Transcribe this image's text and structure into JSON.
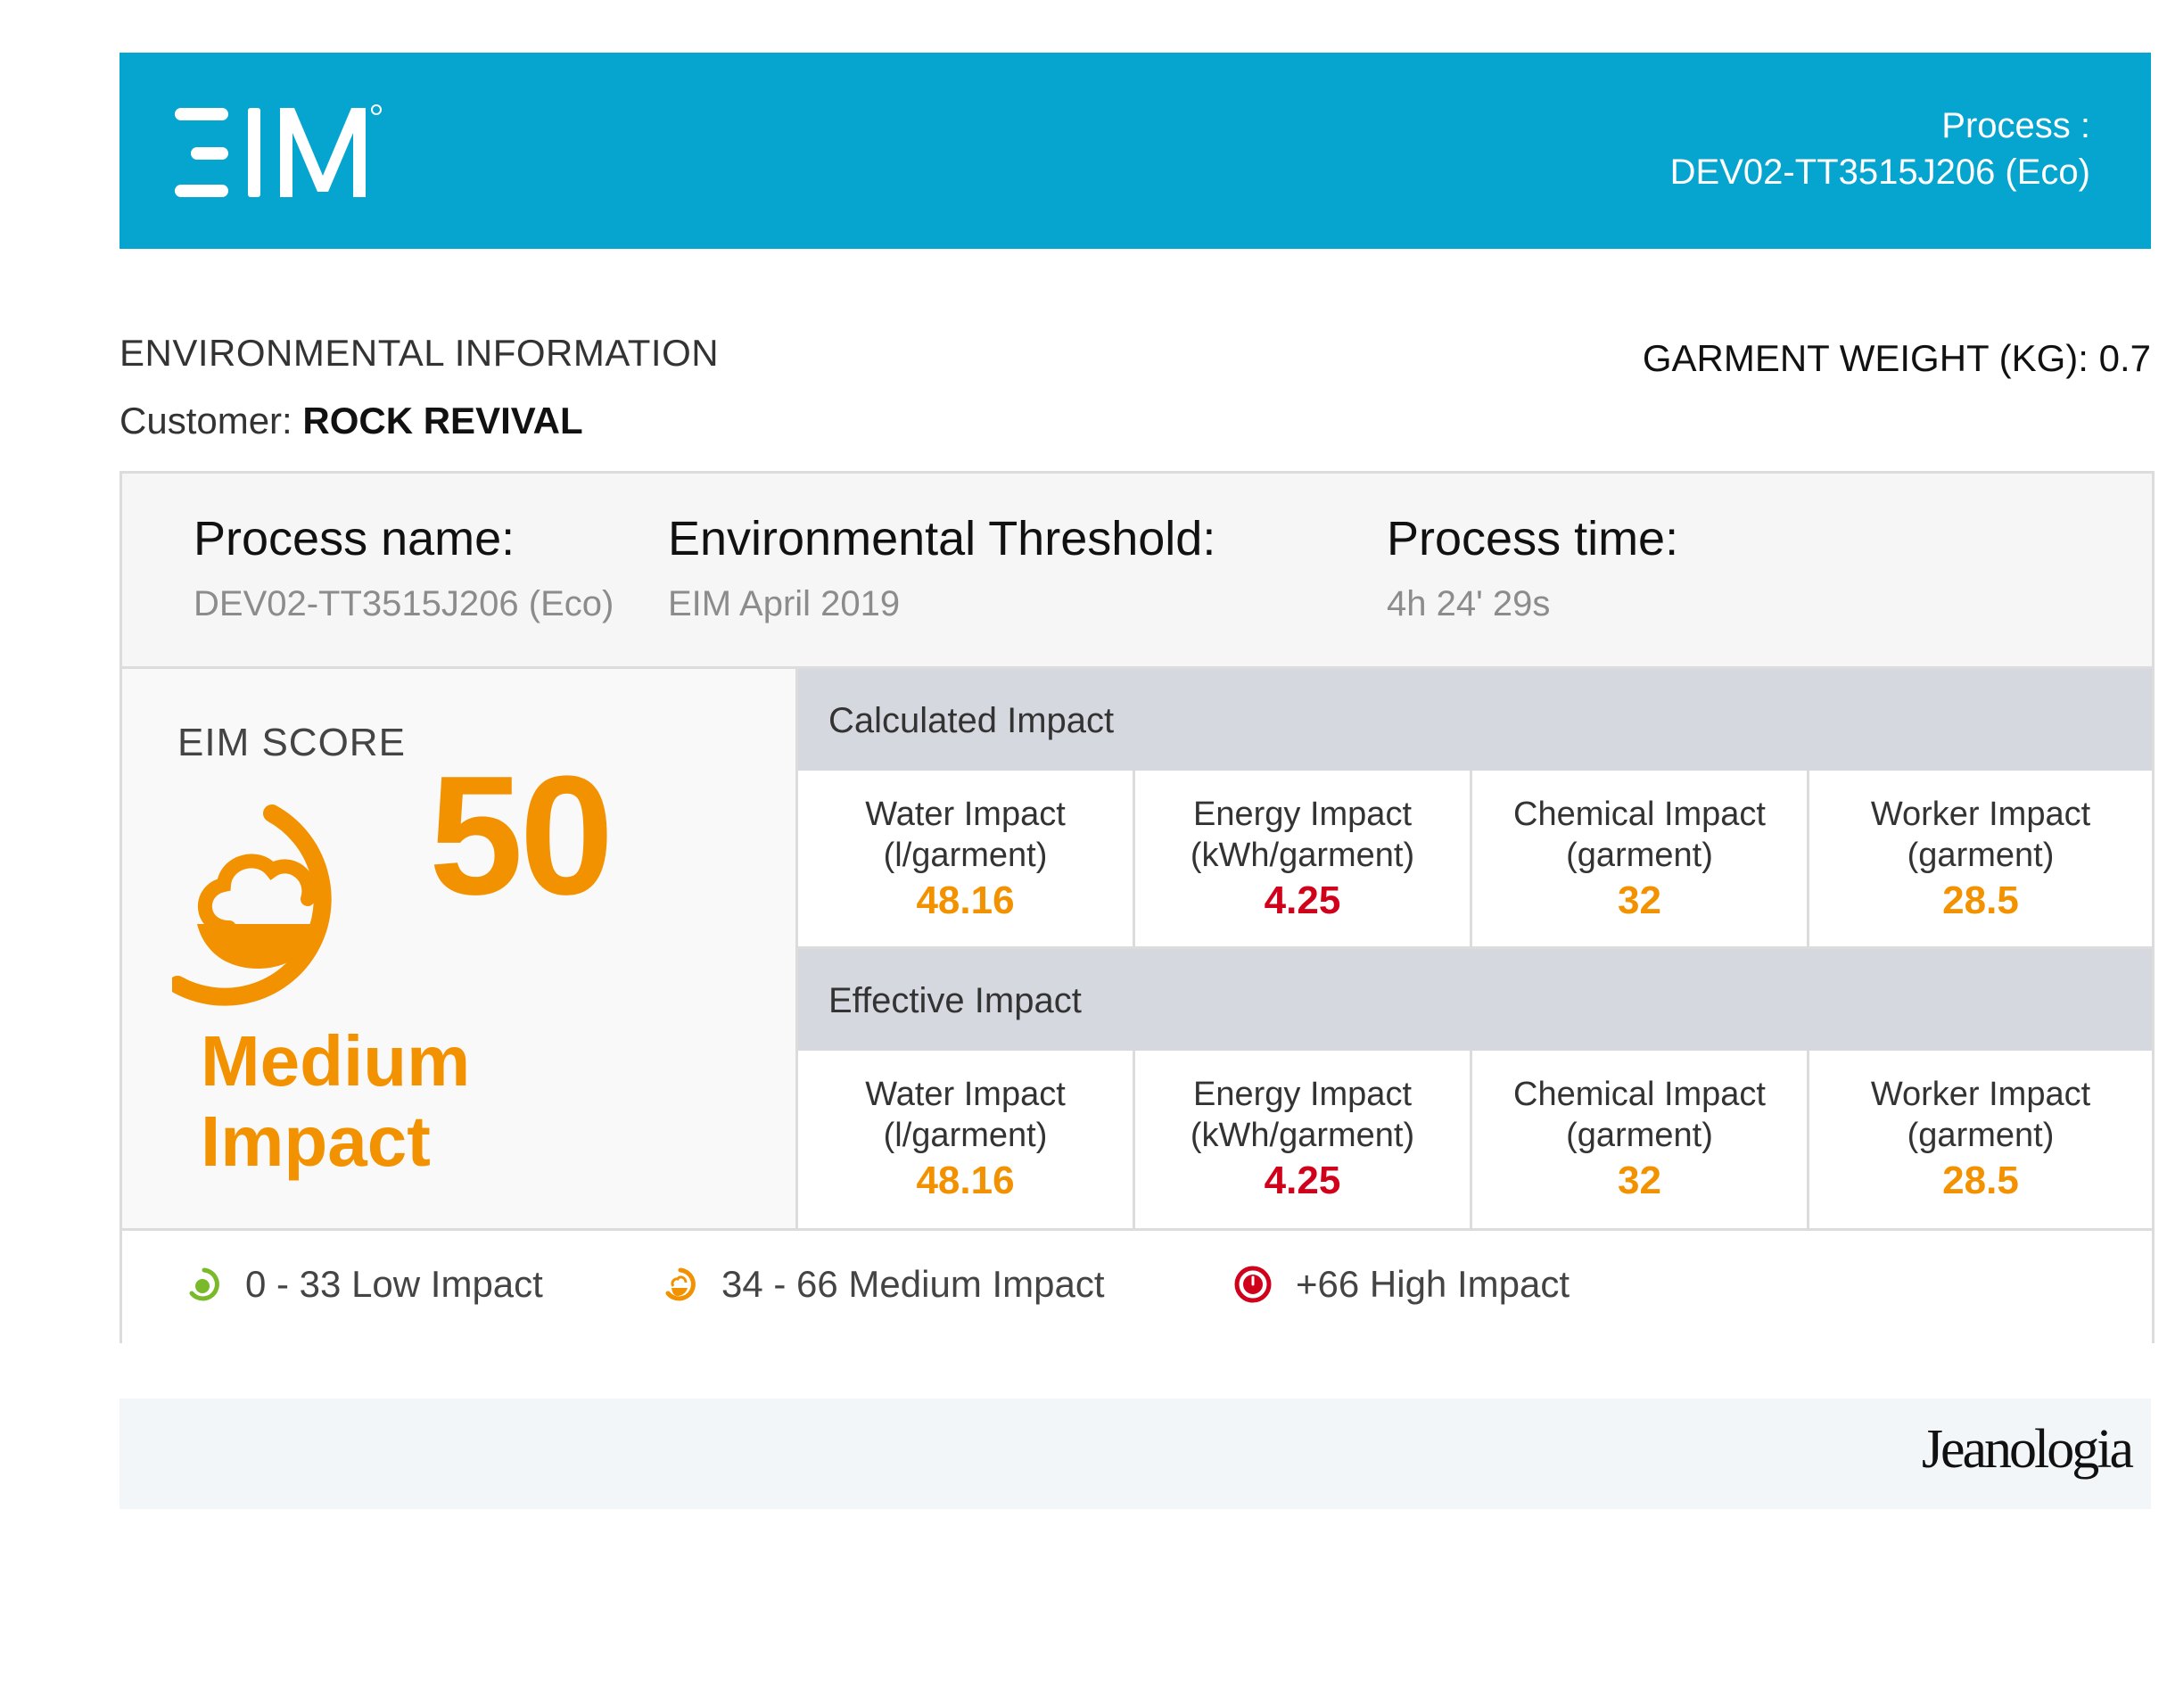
{
  "header": {
    "logo_text": "EIM",
    "process_label": "Process :",
    "process_code": "DEV02-TT3515J206 (Eco)"
  },
  "title": "ENVIRONMENTAL INFORMATION",
  "customer": {
    "label": "Customer:",
    "name": "ROCK REVIVAL"
  },
  "garment_weight": "GARMENT WEIGHT (KG): 0.7",
  "info": [
    {
      "label": "Process name:",
      "value": "DEV02-TT3515J206 (Eco)"
    },
    {
      "label": "Environmental Threshold:",
      "value": "EIM April 2019"
    },
    {
      "label": "Process time:",
      "value": "4h 24' 29s"
    }
  ],
  "score": {
    "title": "EIM SCORE",
    "value": "50",
    "level_line1": "Medium",
    "level_line2": "Impact",
    "icon": "eim-medium-impact-icon"
  },
  "calculated": {
    "title": "Calculated Impact",
    "metrics": [
      {
        "name": "Water Impact",
        "unit": "(l/garment)",
        "value": "48.16"
      },
      {
        "name": "Energy Impact",
        "unit": "(kWh/garment)",
        "value": "4.25"
      },
      {
        "name": "Chemical Impact",
        "unit": "(garment)",
        "value": "32"
      },
      {
        "name": "Worker Impact",
        "unit": "(garment)",
        "value": "28.5"
      }
    ]
  },
  "effective": {
    "title": "Effective Impact",
    "metrics": [
      {
        "name": "Water Impact",
        "unit": "(l/garment)",
        "value": "48.16"
      },
      {
        "name": "Energy Impact",
        "unit": "(kWh/garment)",
        "value": "4.25"
      },
      {
        "name": "Chemical Impact",
        "unit": "(garment)",
        "value": "32"
      },
      {
        "name": "Worker Impact",
        "unit": "(garment)",
        "value": "28.5"
      }
    ]
  },
  "legend": [
    {
      "text": "0 - 33 Low Impact",
      "color": "#7ab929",
      "icon": "low-impact-icon"
    },
    {
      "text": "34 - 66 Medium Impact",
      "color": "#f39200",
      "icon": "medium-impact-icon"
    },
    {
      "text": "+66 High Impact",
      "color": "#d0021b",
      "icon": "high-impact-icon"
    }
  ],
  "footer": {
    "brand": "Jeanologia"
  },
  "colors": {
    "banner": "#06a5d0",
    "medium": "#f39200",
    "high": "#d0021b",
    "low": "#7ab929"
  }
}
